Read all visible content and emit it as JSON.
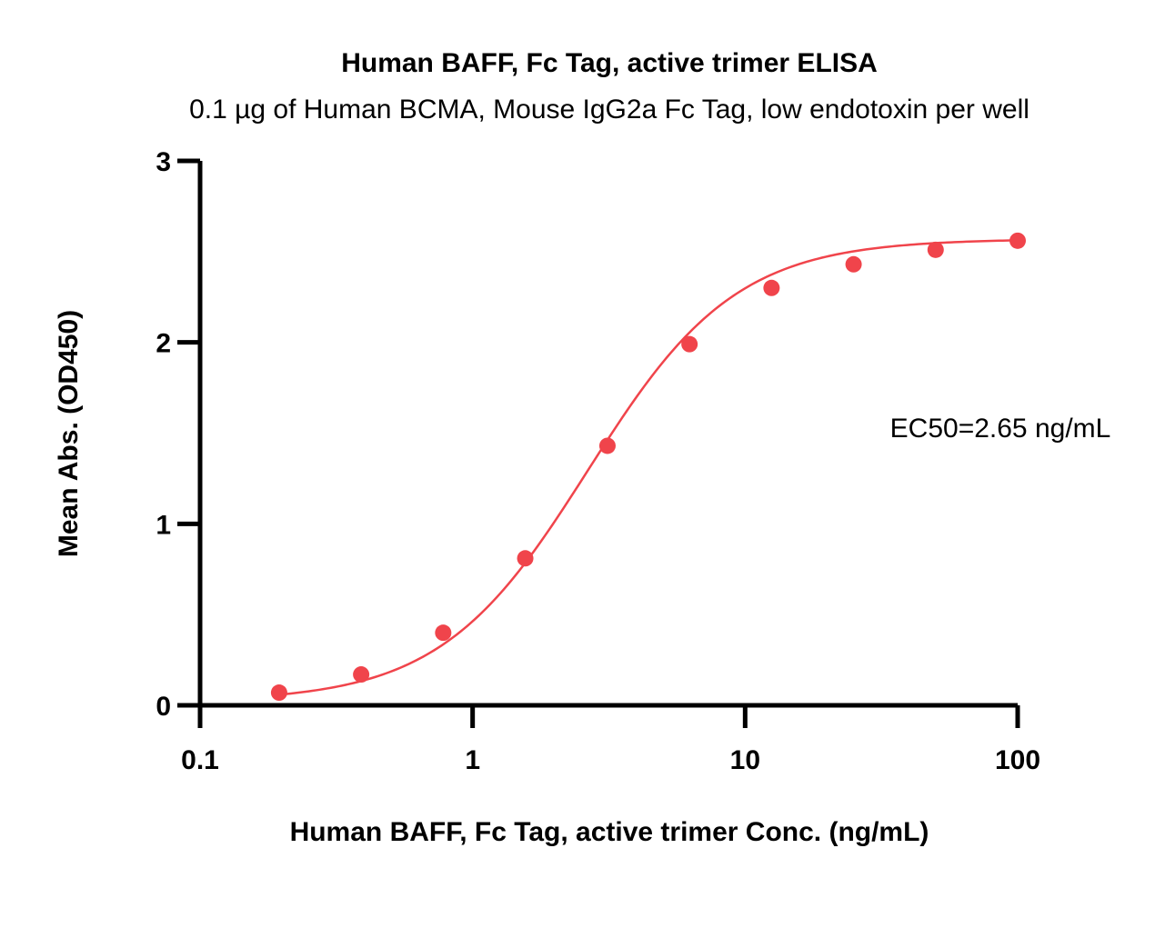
{
  "chart_data": {
    "type": "line",
    "title": "Human BAFF, Fc Tag, active trimer ELISA",
    "subtitle": "0.1 µg of Human BCMA, Mouse IgG2a Fc Tag, low endotoxin per well",
    "xlabel": "Human BAFF, Fc Tag, active trimer Conc. (ng/mL)",
    "ylabel": "Mean Abs. (OD450)",
    "xscale": "log",
    "xlim": [
      0.1,
      100
    ],
    "ylim": [
      0,
      3
    ],
    "xticks": [
      0.1,
      1,
      10,
      100
    ],
    "xtick_labels": [
      "0.1",
      "1",
      "10",
      "100"
    ],
    "yticks": [
      0,
      1,
      2,
      3
    ],
    "ytick_labels": [
      "0",
      "1",
      "2",
      "3"
    ],
    "grid": false,
    "series": [
      {
        "color": "#f0444b",
        "x": [
          0.195,
          0.39,
          0.78,
          1.56,
          3.125,
          6.25,
          12.5,
          25,
          50,
          100
        ],
        "y": [
          0.07,
          0.17,
          0.4,
          0.81,
          1.43,
          1.99,
          2.3,
          2.43,
          2.51,
          2.56
        ]
      }
    ],
    "fit": {
      "type": "4PL",
      "bottom": 0.02,
      "top": 2.57,
      "ec50": 2.65,
      "hill": 1.6
    },
    "annotation": "EC50=2.65 ng/mL"
  }
}
